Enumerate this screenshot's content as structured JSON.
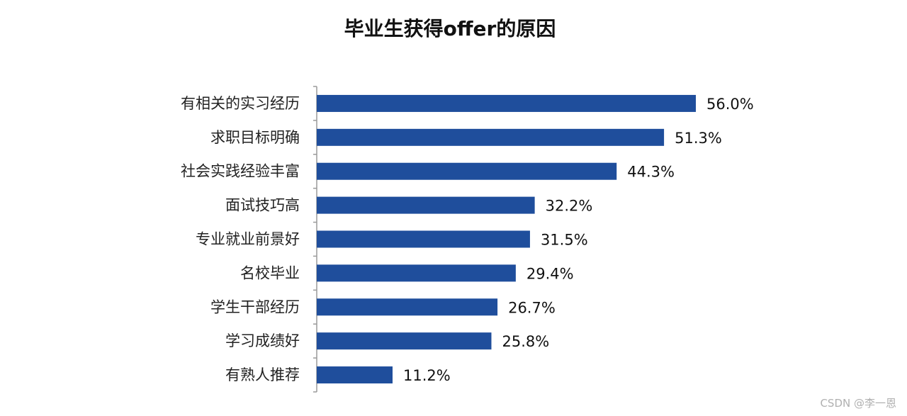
{
  "chart_data": {
    "type": "bar",
    "orientation": "horizontal",
    "title": "毕业生获得offer的原因",
    "categories": [
      "有相关的实习经历",
      "求职目标明确",
      "社会实践经验丰富",
      "面试技巧高",
      "专业就业前景好",
      "名校毕业",
      "学生干部经历",
      "学习成绩好",
      "有熟人推荐"
    ],
    "values": [
      56.0,
      51.3,
      44.3,
      32.2,
      31.5,
      29.4,
      26.7,
      25.8,
      11.2
    ],
    "value_labels": [
      "56.0%",
      "51.3%",
      "44.3%",
      "32.2%",
      "31.5%",
      "29.4%",
      "26.7%",
      "25.8%",
      "11.2%"
    ],
    "unit": "%",
    "xlim": [
      0,
      60
    ],
    "grid": false,
    "legend": "none",
    "bar_color": "#1f4e9c"
  },
  "watermark": "CSDN @李一恩"
}
